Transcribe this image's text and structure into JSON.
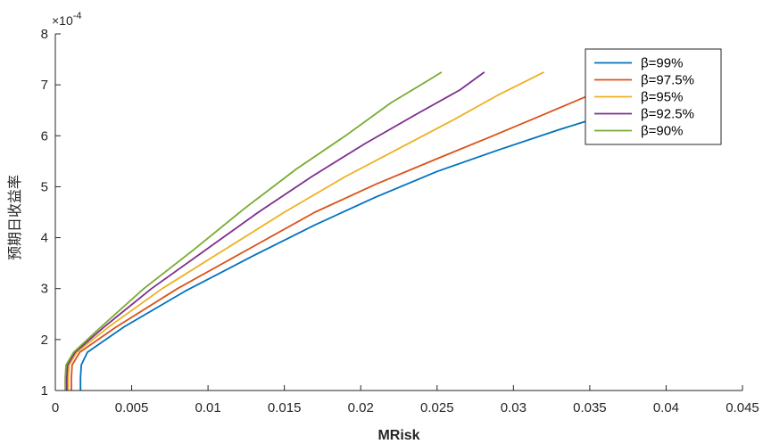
{
  "chart_data": {
    "type": "line",
    "title": "",
    "xlabel": "MRisk",
    "ylabel": "预期日收益率",
    "y_exponent_label": "×10",
    "y_exponent_power": "-4",
    "xlim": [
      0,
      0.045
    ],
    "ylim": [
      1,
      8
    ],
    "x_ticks": [
      0,
      0.005,
      0.01,
      0.015,
      0.02,
      0.025,
      0.03,
      0.035,
      0.04,
      0.045
    ],
    "x_tick_labels": [
      "0",
      "0.005",
      "0.01",
      "0.015",
      "0.02",
      "0.025",
      "0.03",
      "0.035",
      "0.04",
      "0.045"
    ],
    "y_ticks": [
      1,
      2,
      3,
      4,
      5,
      6,
      7,
      8
    ],
    "y_tick_labels": [
      "1",
      "2",
      "3",
      "4",
      "5",
      "6",
      "7",
      "8"
    ],
    "grid": false,
    "legend_position": "top-right",
    "series": [
      {
        "name": "β=99%",
        "color": "#0072BD",
        "x": [
          0.00165,
          0.00165,
          0.0017,
          0.0021,
          0.0045,
          0.0085,
          0.013,
          0.017,
          0.021,
          0.025,
          0.029,
          0.033,
          0.036,
          0.0375
        ],
        "y": [
          1.0,
          1.25,
          1.5,
          1.75,
          2.25,
          2.95,
          3.65,
          4.25,
          4.8,
          5.3,
          5.72,
          6.12,
          6.4,
          6.55
        ]
      },
      {
        "name": "β=97.5%",
        "color": "#D95319",
        "x": [
          0.00105,
          0.00105,
          0.0011,
          0.0016,
          0.004,
          0.008,
          0.0125,
          0.017,
          0.021,
          0.025,
          0.0285,
          0.032,
          0.035,
          0.0375
        ],
        "y": [
          1.0,
          1.25,
          1.5,
          1.75,
          2.25,
          3.0,
          3.75,
          4.5,
          5.05,
          5.55,
          5.98,
          6.42,
          6.8,
          7.1
        ]
      },
      {
        "name": "β=95%",
        "color": "#EDB120",
        "x": [
          0.00085,
          0.00085,
          0.0009,
          0.0014,
          0.0035,
          0.007,
          0.011,
          0.015,
          0.019,
          0.0225,
          0.026,
          0.029,
          0.032
        ],
        "y": [
          1.0,
          1.25,
          1.5,
          1.75,
          2.25,
          3.0,
          3.75,
          4.5,
          5.2,
          5.75,
          6.3,
          6.8,
          7.25
        ]
      },
      {
        "name": "β=92.5%",
        "color": "#7E2F8E",
        "x": [
          0.00075,
          0.00075,
          0.0008,
          0.0013,
          0.0032,
          0.0063,
          0.0098,
          0.0133,
          0.0168,
          0.0203,
          0.0238,
          0.0265,
          0.0281
        ],
        "y": [
          1.0,
          1.25,
          1.5,
          1.75,
          2.25,
          3.0,
          3.75,
          4.5,
          5.2,
          5.85,
          6.45,
          6.9,
          7.25
        ]
      },
      {
        "name": "β=90%",
        "color": "#77AC30",
        "x": [
          0.00065,
          0.00065,
          0.0007,
          0.0012,
          0.003,
          0.0058,
          0.009,
          0.0125,
          0.0158,
          0.019,
          0.022,
          0.0245,
          0.0253
        ],
        "y": [
          1.0,
          1.25,
          1.5,
          1.75,
          2.25,
          3.0,
          3.75,
          4.6,
          5.35,
          6.0,
          6.65,
          7.1,
          7.25
        ]
      }
    ]
  }
}
